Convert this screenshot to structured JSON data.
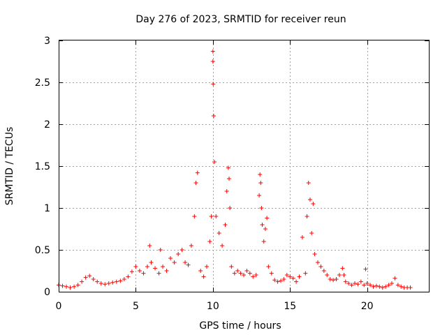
{
  "chart_data": {
    "type": "scatter",
    "title": "Day 276 of 2023, SRMTID for receiver reun",
    "xlabel": "GPS time / hours",
    "ylabel": "SRMTID / TECUs",
    "xlim": [
      0,
      24
    ],
    "ylim": [
      0,
      3
    ],
    "x_ticks": [
      0,
      5,
      10,
      15,
      20
    ],
    "x_tick_labels": [
      "0",
      "5",
      "10",
      "15",
      "20"
    ],
    "y_ticks": [
      0,
      0.5,
      1,
      1.5,
      2,
      2.5,
      3
    ],
    "y_tick_labels": [
      "0",
      "0.5",
      "1",
      "1.5",
      "2",
      "2.5",
      "3"
    ],
    "grid": true,
    "marker": "+",
    "color": "#ff0000",
    "series": [
      {
        "name": "SRMTID",
        "x": [
          0.0,
          0.25,
          0.5,
          0.75,
          1.0,
          1.25,
          1.5,
          1.75,
          2.0,
          2.25,
          2.5,
          2.75,
          3.0,
          3.25,
          3.5,
          3.75,
          4.0,
          4.25,
          4.5,
          4.75,
          5.0,
          5.25,
          5.5,
          5.75,
          5.9,
          6.0,
          6.25,
          6.5,
          6.6,
          6.75,
          7.0,
          7.25,
          7.5,
          7.75,
          8.0,
          8.2,
          8.4,
          8.6,
          8.8,
          8.9,
          9.0,
          9.2,
          9.4,
          9.6,
          9.8,
          9.9,
          10.0,
          10.0,
          10.02,
          10.05,
          10.1,
          10.2,
          10.4,
          10.6,
          10.8,
          10.9,
          11.0,
          11.05,
          11.1,
          11.2,
          11.4,
          11.6,
          11.8,
          12.0,
          12.2,
          12.4,
          12.6,
          12.8,
          13.0,
          13.05,
          13.1,
          13.15,
          13.2,
          13.3,
          13.4,
          13.5,
          13.6,
          13.8,
          14.0,
          14.2,
          14.4,
          14.6,
          14.8,
          15.0,
          15.2,
          15.4,
          15.6,
          15.8,
          16.0,
          16.1,
          16.2,
          16.3,
          16.4,
          16.5,
          16.6,
          16.8,
          17.0,
          17.2,
          17.4,
          17.6,
          17.8,
          18.0,
          18.2,
          18.4,
          18.5,
          18.6,
          18.8,
          19.0,
          19.2,
          19.4,
          19.6,
          19.8,
          19.9,
          20.0,
          20.2,
          20.4,
          20.6,
          20.8,
          21.0,
          21.2,
          21.4,
          21.6,
          21.8,
          22.0,
          22.2,
          22.4,
          22.6,
          22.8
        ],
        "y": [
          0.08,
          0.07,
          0.06,
          0.05,
          0.06,
          0.08,
          0.12,
          0.17,
          0.19,
          0.15,
          0.12,
          0.1,
          0.09,
          0.1,
          0.11,
          0.12,
          0.13,
          0.15,
          0.18,
          0.24,
          0.3,
          0.25,
          0.22,
          0.3,
          0.55,
          0.35,
          0.28,
          0.22,
          0.5,
          0.3,
          0.25,
          0.4,
          0.35,
          0.45,
          0.5,
          0.35,
          0.32,
          0.55,
          0.9,
          1.3,
          1.42,
          0.25,
          0.18,
          0.3,
          0.6,
          0.9,
          2.87,
          2.75,
          2.48,
          2.1,
          1.55,
          0.9,
          0.7,
          0.55,
          0.8,
          1.2,
          1.48,
          1.35,
          1.0,
          0.3,
          0.22,
          0.25,
          0.22,
          0.2,
          0.25,
          0.22,
          0.18,
          0.2,
          1.15,
          1.4,
          1.3,
          1.0,
          0.8,
          0.6,
          0.75,
          0.88,
          0.3,
          0.22,
          0.14,
          0.12,
          0.13,
          0.15,
          0.2,
          0.18,
          0.16,
          0.12,
          0.18,
          0.65,
          0.22,
          0.9,
          1.3,
          1.1,
          0.7,
          1.05,
          0.45,
          0.35,
          0.3,
          0.25,
          0.2,
          0.15,
          0.14,
          0.15,
          0.2,
          0.28,
          0.2,
          0.12,
          0.1,
          0.08,
          0.1,
          0.09,
          0.12,
          0.08,
          0.27,
          0.1,
          0.08,
          0.06,
          0.07,
          0.06,
          0.05,
          0.06,
          0.08,
          0.1,
          0.16,
          0.08,
          0.06,
          0.05,
          0.05,
          0.05
        ]
      }
    ]
  }
}
